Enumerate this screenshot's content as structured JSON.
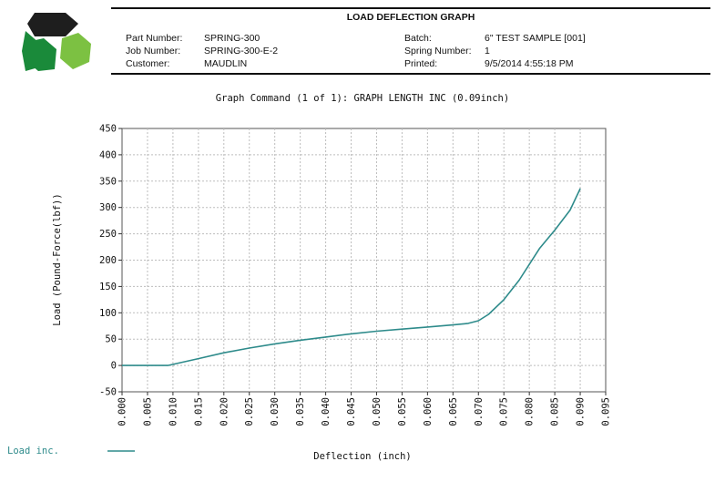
{
  "report": {
    "title": "LOAD DEFLECTION GRAPH",
    "part_number_label": "Part Number:",
    "part_number": "SPRING-300",
    "job_number_label": "Job Number:",
    "job_number": "SPRING-300-E-2",
    "customer_label": "Customer:",
    "customer": "MAUDLIN",
    "batch_label": "Batch:",
    "batch": "6\" TEST SAMPLE [001]",
    "spring_number_label": "Spring Number:",
    "spring_number": "1",
    "printed_label": "Printed:",
    "printed": "9/5/2014 4:55:18 PM"
  },
  "logo": {
    "icon": "hexagon-cube-logo",
    "colors": [
      "#1e1e1e",
      "#1a8a3a",
      "#7cc142"
    ]
  },
  "chart_data": {
    "type": "line",
    "title": "Graph Command (1 of 1): GRAPH LENGTH INC (0.09inch)",
    "xlabel": "Deflection (inch)",
    "ylabel": "Load (Pound-Force(lbf))",
    "xlim": [
      0,
      0.095
    ],
    "ylim": [
      -50,
      450
    ],
    "x_ticks": [
      "0.000",
      "0.005",
      "0.010",
      "0.015",
      "0.020",
      "0.025",
      "0.030",
      "0.035",
      "0.040",
      "0.045",
      "0.050",
      "0.055",
      "0.060",
      "0.065",
      "0.070",
      "0.075",
      "0.080",
      "0.085",
      "0.090",
      "0.095"
    ],
    "y_ticks": [
      "-50",
      "0",
      "50",
      "100",
      "150",
      "200",
      "250",
      "300",
      "350",
      "400",
      "450"
    ],
    "grid": true,
    "legend": "bottom-left",
    "series": [
      {
        "name": "Load inc.",
        "color": "#2e8b8b",
        "x": [
          0.0,
          0.009,
          0.015,
          0.02,
          0.025,
          0.03,
          0.035,
          0.04,
          0.045,
          0.05,
          0.055,
          0.06,
          0.065,
          0.068,
          0.07,
          0.072,
          0.075,
          0.078,
          0.08,
          0.082,
          0.085,
          0.088,
          0.09
        ],
        "y": [
          0,
          0,
          13,
          24,
          33,
          41,
          48,
          54,
          60,
          65,
          69,
          73,
          77,
          80,
          85,
          97,
          125,
          162,
          192,
          222,
          257,
          295,
          336
        ]
      }
    ]
  }
}
